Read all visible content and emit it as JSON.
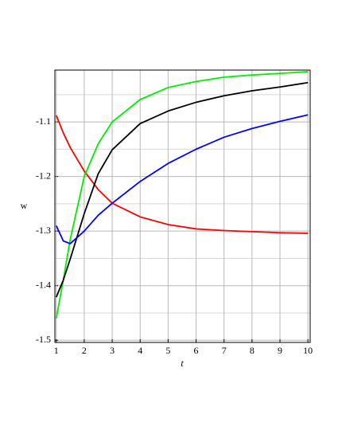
{
  "chart_data": {
    "type": "line",
    "x_label": "t",
    "y_label": "w",
    "x": [
      1,
      1.25,
      1.5,
      2,
      2.5,
      3,
      4,
      5,
      6,
      7,
      8,
      9,
      10
    ],
    "series": [
      {
        "color": "#ff0000",
        "values": [
          -1.088,
          -1.12,
          -1.147,
          -1.19,
          -1.224,
          -1.249,
          -1.274,
          -1.288,
          -1.296,
          -1.299,
          -1.301,
          -1.303,
          -1.304
        ]
      },
      {
        "color": "#00ee00",
        "values": [
          -1.46,
          -1.39,
          -1.315,
          -1.2,
          -1.14,
          -1.1,
          -1.059,
          -1.037,
          -1.026,
          -1.018,
          -1.014,
          -1.011,
          -1.008
        ]
      },
      {
        "color": "#000000",
        "values": [
          -1.421,
          -1.39,
          -1.351,
          -1.268,
          -1.195,
          -1.151,
          -1.103,
          -1.08,
          -1.064,
          -1.052,
          -1.043,
          -1.036,
          -1.028
        ]
      },
      {
        "color": "#0000ff",
        "values": [
          -1.29,
          -1.318,
          -1.323,
          -1.3,
          -1.271,
          -1.249,
          -1.209,
          -1.176,
          -1.15,
          -1.128,
          -1.112,
          -1.099,
          -1.087
        ]
      }
    ],
    "xlim": [
      0.95,
      10.08
    ],
    "ylim": [
      -1.504,
      -1.005
    ],
    "xticks": [
      1,
      2,
      3,
      4,
      5,
      6,
      7,
      8,
      9,
      10
    ],
    "yticks": [
      -1.5,
      -1.4,
      -1.3,
      -1.2,
      -1.1
    ],
    "yminorticks": [
      -1.45,
      -1.35,
      -1.25,
      -1.15,
      -1.05
    ],
    "grid": true
  }
}
